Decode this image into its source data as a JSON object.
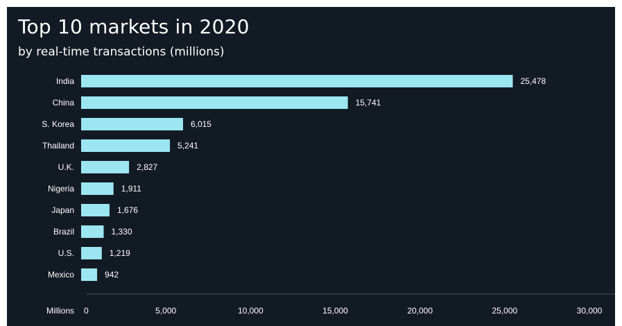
{
  "title": "Top 10 markets in 2020",
  "subtitle": "by real-time transactions (millions)",
  "colors": {
    "background": "#121a24",
    "bar": "#9ce6f2",
    "text": "#ffffff",
    "axis": "#4a5562"
  },
  "chart_data": {
    "type": "bar",
    "orientation": "horizontal",
    "title": "Top 10 markets in 2020",
    "subtitle": "by real-time transactions (millions)",
    "xlabel": "Millions",
    "ylabel": "",
    "categories": [
      "India",
      "China",
      "S. Korea",
      "Thailand",
      "U.K.",
      "Nigeria",
      "Japan",
      "Brazil",
      "U.S.",
      "Mexico"
    ],
    "values": [
      25478,
      15741,
      6015,
      5241,
      2827,
      1911,
      1676,
      1330,
      1219,
      942
    ],
    "value_labels": [
      "25,478",
      "15,741",
      "6,015",
      "5,241",
      "2,827",
      "1,911",
      "1,676",
      "1,330",
      "1,219",
      "942"
    ],
    "xlim": [
      0,
      30000
    ],
    "xticks": [
      0,
      5000,
      10000,
      15000,
      20000,
      25000,
      30000
    ],
    "xtick_labels": [
      "0",
      "5,000",
      "10,000",
      "15,000",
      "20,000",
      "25,000",
      "30,000"
    ],
    "grid": false,
    "legend": "none"
  }
}
